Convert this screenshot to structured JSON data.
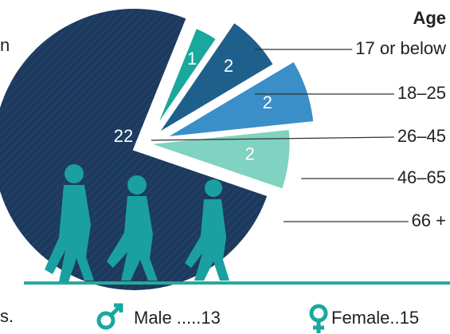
{
  "chart_data": {
    "type": "pie",
    "title": "Age",
    "categories": [
      "17 or below",
      "18–25",
      "26–45",
      "46–65",
      "66 +"
    ],
    "values": [
      1,
      2,
      22,
      2,
      2
    ],
    "colors": [
      "#1aa89c",
      "#1f5f8b",
      "#1b3a5c",
      "#3a8fc9",
      "#7fd3c0"
    ],
    "gender": [
      {
        "label": "Male .....",
        "value": 13
      },
      {
        "label": "Female..",
        "value": 15
      }
    ],
    "fragments": [
      "n",
      "s."
    ]
  }
}
